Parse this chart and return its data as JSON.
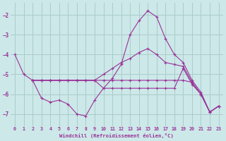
{
  "xlabel": "Windchill (Refroidissement éolien,°C)",
  "background_color": "#cce8e8",
  "grid_color": "#aacccc",
  "line_color": "#993399",
  "xlim": [
    -0.5,
    23.5
  ],
  "ylim": [
    -7.6,
    -1.4
  ],
  "yticks": [
    -7,
    -6,
    -5,
    -4,
    -3,
    -2
  ],
  "xticks": [
    0,
    1,
    2,
    3,
    4,
    5,
    6,
    7,
    8,
    9,
    10,
    11,
    12,
    13,
    14,
    15,
    16,
    17,
    18,
    19,
    20,
    21,
    22,
    23
  ],
  "lines": [
    {
      "x": [
        0,
        1,
        2,
        3,
        4,
        5,
        6,
        7,
        8,
        9,
        10,
        11,
        12,
        13,
        14,
        15,
        16,
        17,
        18,
        19,
        20,
        21,
        22,
        23
      ],
      "y": [
        -4.0,
        -5.0,
        -5.3,
        -6.2,
        -6.4,
        -6.3,
        -6.5,
        -7.0,
        -7.1,
        -6.3,
        -5.7,
        -5.2,
        -4.5,
        -3.0,
        -2.3,
        -1.8,
        -2.1,
        -3.2,
        -4.0,
        -4.4,
        -5.3,
        -5.9,
        -6.9,
        -6.6
      ]
    },
    {
      "x": [
        2,
        3,
        4,
        5,
        6,
        7,
        8,
        9,
        10,
        11,
        12,
        13,
        14,
        15,
        16,
        17,
        18,
        19,
        20,
        21,
        22,
        23
      ],
      "y": [
        -5.3,
        -5.3,
        -5.3,
        -5.3,
        -5.3,
        -5.3,
        -5.3,
        -5.3,
        -5.3,
        -5.3,
        -5.3,
        -5.3,
        -5.3,
        -5.3,
        -5.3,
        -5.3,
        -5.3,
        -5.3,
        -5.4,
        -6.0,
        -6.9,
        -6.6
      ]
    },
    {
      "x": [
        2,
        3,
        4,
        5,
        6,
        7,
        8,
        9,
        10,
        11,
        12,
        13,
        14,
        15,
        16,
        17,
        18,
        19,
        20,
        21,
        22,
        23
      ],
      "y": [
        -5.3,
        -5.3,
        -5.3,
        -5.3,
        -5.3,
        -5.3,
        -5.3,
        -5.3,
        -5.0,
        -4.7,
        -4.4,
        -4.2,
        -3.9,
        -3.7,
        -4.0,
        -4.4,
        -4.5,
        -4.6,
        -5.4,
        -6.0,
        -6.9,
        -6.6
      ]
    },
    {
      "x": [
        2,
        3,
        4,
        5,
        6,
        7,
        8,
        9,
        10,
        11,
        12,
        13,
        14,
        15,
        16,
        17,
        18,
        19,
        20,
        21,
        22,
        23
      ],
      "y": [
        -5.3,
        -5.3,
        -5.3,
        -5.3,
        -5.3,
        -5.3,
        -5.3,
        -5.3,
        -5.7,
        -5.7,
        -5.7,
        -5.7,
        -5.7,
        -5.7,
        -5.7,
        -5.7,
        -5.7,
        -4.7,
        -5.5,
        -6.0,
        -6.9,
        -6.6
      ]
    }
  ]
}
